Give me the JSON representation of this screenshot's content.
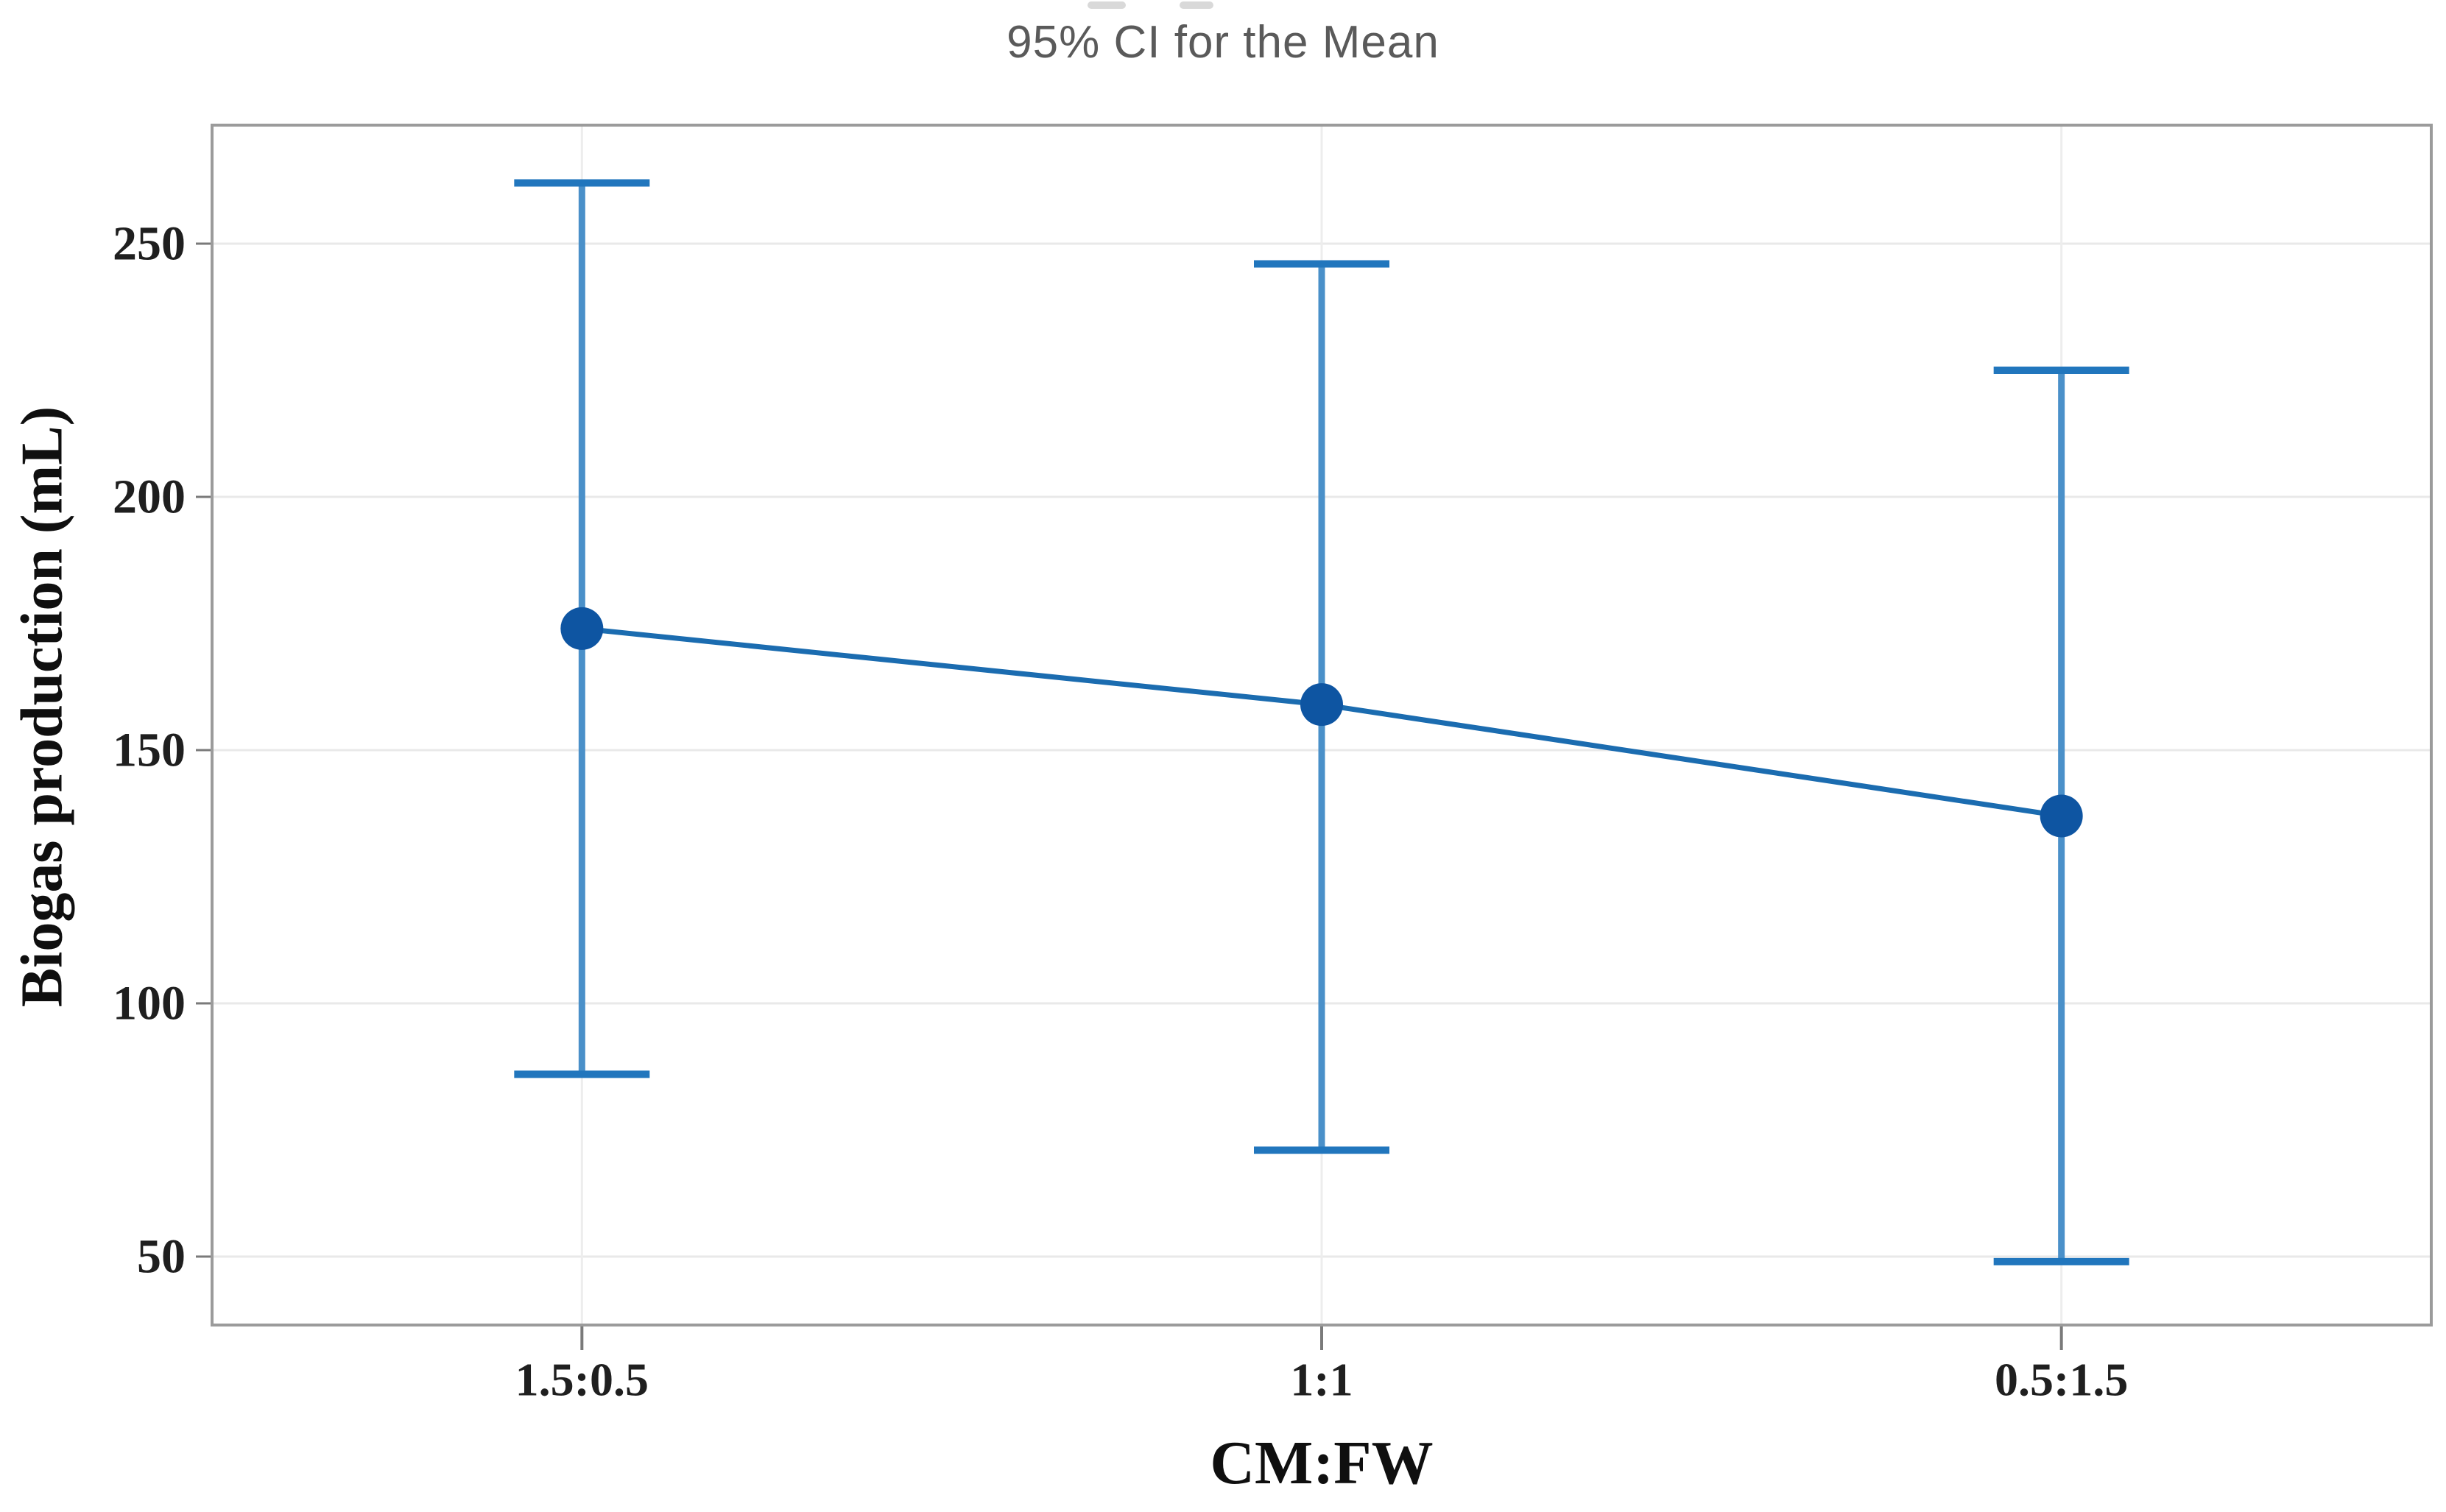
{
  "title": "95% CI for the Mean",
  "axis": {
    "y_label": "Biogas production (mL)",
    "x_label": "CM:FW"
  },
  "chart_data": {
    "type": "line",
    "subtype": "interval-plot-95ci",
    "title": "95% CI for the Mean",
    "xlabel": "CM:FW",
    "ylabel": "Biogas production (mL)",
    "categories": [
      "1.5:0.5",
      "1:1",
      "0.5:1.5"
    ],
    "series": [
      {
        "name": "Mean",
        "values": [
          174,
          159,
          137
        ]
      }
    ],
    "ci_low": [
      86,
      71,
      49
    ],
    "ci_high": [
      262,
      246,
      225
    ],
    "yticks": [
      250,
      200,
      150,
      100,
      50
    ],
    "ylim": [
      36,
      274
    ],
    "grid": "horizontal-and-category-vertical",
    "legend": "none"
  },
  "colors": {
    "interval_line": "#4a90c9",
    "interval_cap": "#2176bd",
    "connect_line": "#1b6cb0",
    "mean_dot": "#0e55a2",
    "gridline": "#e9e9e9",
    "category_gridline": "#ededed",
    "plot_border": "#9b9b9b",
    "tick_mark": "#7a7a7a",
    "tick_label": "#1f1f1f",
    "title_text": "#5a5a5a",
    "axis_label_text": "#0f0f0f",
    "background": "#ffffff"
  }
}
